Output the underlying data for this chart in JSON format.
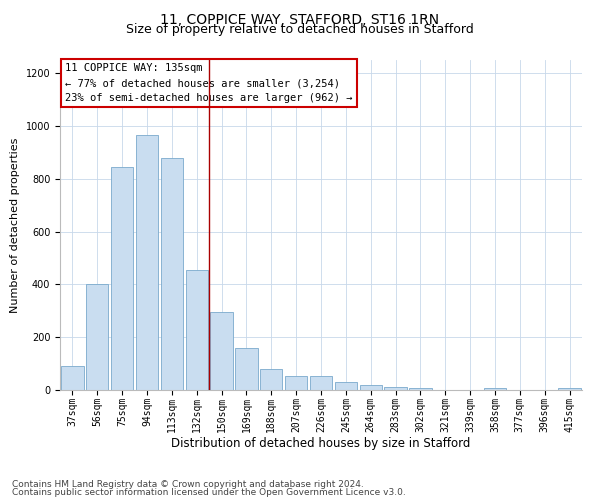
{
  "title1": "11, COPPICE WAY, STAFFORD, ST16 1RN",
  "title2": "Size of property relative to detached houses in Stafford",
  "xlabel": "Distribution of detached houses by size in Stafford",
  "ylabel": "Number of detached properties",
  "categories": [
    "37sqm",
    "56sqm",
    "75sqm",
    "94sqm",
    "113sqm",
    "132sqm",
    "150sqm",
    "169sqm",
    "188sqm",
    "207sqm",
    "226sqm",
    "245sqm",
    "264sqm",
    "283sqm",
    "302sqm",
    "321sqm",
    "339sqm",
    "358sqm",
    "377sqm",
    "396sqm",
    "415sqm"
  ],
  "values": [
    90,
    400,
    845,
    965,
    880,
    455,
    295,
    160,
    80,
    52,
    52,
    30,
    18,
    12,
    7,
    0,
    0,
    8,
    0,
    0,
    8
  ],
  "bar_color": "#c9ddf0",
  "bar_edge_color": "#7aaacc",
  "vline_x": 5.5,
  "vline_color": "#aa0000",
  "annotation_text": "11 COPPICE WAY: 135sqm\n← 77% of detached houses are smaller (3,254)\n23% of semi-detached houses are larger (962) →",
  "annotation_box_color": "#cc0000",
  "ylim": [
    0,
    1250
  ],
  "yticks": [
    0,
    200,
    400,
    600,
    800,
    1000,
    1200
  ],
  "footer1": "Contains HM Land Registry data © Crown copyright and database right 2024.",
  "footer2": "Contains public sector information licensed under the Open Government Licence v3.0.",
  "background_color": "#ffffff",
  "grid_color": "#c8d8ea",
  "title1_fontsize": 10,
  "title2_fontsize": 9,
  "xlabel_fontsize": 8.5,
  "ylabel_fontsize": 8,
  "tick_fontsize": 7,
  "annotation_fontsize": 7.5,
  "footer_fontsize": 6.5
}
